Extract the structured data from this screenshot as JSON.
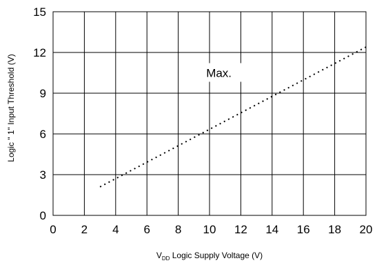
{
  "chart_data": {
    "type": "line",
    "xlabel": "V",
    "xlabel_sub": "DD",
    "xlabel_rest": " Logic Supply Voltage (V)",
    "ylabel": "Logic \" 1\" Input Threshold (V)",
    "xlim": [
      0,
      20
    ],
    "ylim": [
      0,
      15
    ],
    "x_ticks": [
      "0",
      "2",
      "4",
      "6",
      "8",
      "10",
      "12",
      "14",
      "16",
      "18",
      "20"
    ],
    "y_ticks": [
      "0",
      "3",
      "6",
      "9",
      "12",
      "15"
    ],
    "grid": true,
    "series": [
      {
        "name": "Max.",
        "style": "dotted",
        "x": [
          3,
          20
        ],
        "y": [
          2.1,
          12.4
        ]
      }
    ],
    "annotations": [
      {
        "text": "Max.",
        "x": 10.6,
        "y": 10.4
      }
    ]
  }
}
